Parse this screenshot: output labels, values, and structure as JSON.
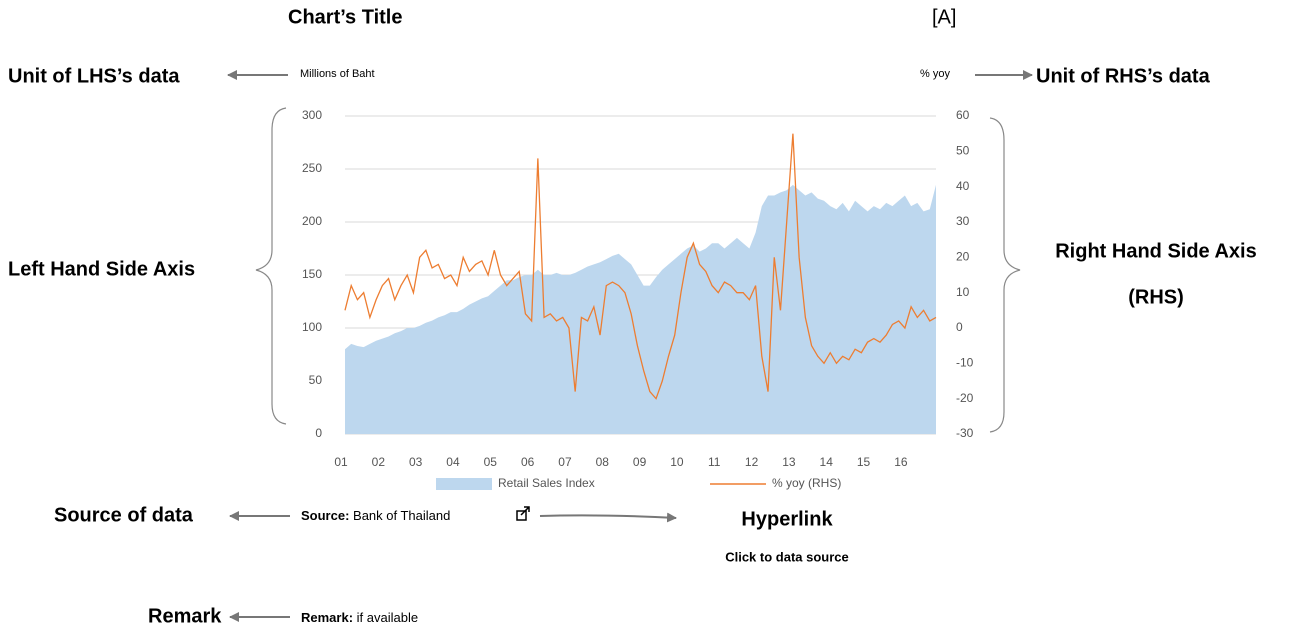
{
  "annotations": {
    "chart_title": "Chart’s Title",
    "marker": "[A]",
    "lhs_unit_label": "Unit of LHS’s data",
    "rhs_unit_label": "Unit of RHS’s data",
    "lhs_axis_label": "Left Hand Side Axis",
    "rhs_axis_label": [
      "Right Hand Side Axis",
      "(RHS)"
    ],
    "source_label": "Source of data",
    "hyperlink_label": "Hyperlink",
    "hyperlink_note": "Click to data source",
    "remark_label": "Remark"
  },
  "chart_data": {
    "type": "area-line",
    "y_unit": "Millions of Baht",
    "y2_unit": "% yoy",
    "categories": [
      "01",
      null,
      null,
      null,
      null,
      null,
      "02",
      null,
      null,
      null,
      null,
      null,
      "03",
      null,
      null,
      null,
      null,
      null,
      "04",
      null,
      null,
      null,
      null,
      null,
      "05",
      null,
      null,
      null,
      null,
      null,
      "06",
      null,
      null,
      null,
      null,
      null,
      "07",
      null,
      null,
      null,
      null,
      null,
      "08",
      null,
      null,
      null,
      null,
      null,
      "09",
      null,
      null,
      null,
      null,
      null,
      "10",
      null,
      null,
      null,
      null,
      null,
      "11",
      null,
      null,
      null,
      null,
      null,
      "12",
      null,
      null,
      null,
      null,
      null,
      "13",
      null,
      null,
      null,
      null,
      null,
      "14",
      null,
      null,
      null,
      null,
      null,
      "15",
      null,
      null,
      null,
      null,
      null,
      "16",
      null,
      null,
      null,
      null,
      null
    ],
    "series": [
      {
        "name": "Retail Sales Index",
        "type": "area",
        "color": "#bdd7ee",
        "values": [
          80,
          85,
          83,
          82,
          85,
          88,
          90,
          92,
          95,
          97,
          100,
          100,
          102,
          105,
          107,
          110,
          112,
          115,
          115,
          118,
          122,
          125,
          128,
          130,
          135,
          140,
          145,
          145,
          148,
          150,
          150,
          155,
          150,
          150,
          152,
          150,
          150,
          152,
          155,
          158,
          160,
          162,
          165,
          168,
          170,
          165,
          160,
          150,
          140,
          140,
          148,
          155,
          160,
          165,
          170,
          175,
          178,
          172,
          175,
          180,
          180,
          175,
          180,
          185,
          180,
          175,
          190,
          215,
          225,
          225,
          228,
          230,
          235,
          230,
          225,
          228,
          222,
          220,
          215,
          212,
          218,
          210,
          220,
          215,
          210,
          215,
          212,
          218,
          215,
          220,
          225,
          215,
          218,
          210,
          212,
          235
        ]
      },
      {
        "name": "% yoy (RHS)",
        "type": "line",
        "axis": "y2",
        "color": "#ed7d31",
        "values": [
          5,
          12,
          8,
          10,
          3,
          8,
          12,
          14,
          8,
          12,
          15,
          10,
          20,
          22,
          17,
          18,
          14,
          15,
          12,
          20,
          16,
          18,
          19,
          15,
          22,
          15,
          12,
          14,
          16,
          4,
          2,
          48,
          3,
          4,
          2,
          3,
          0,
          -18,
          3,
          2,
          6,
          -2,
          12,
          13,
          12,
          10,
          4,
          -5,
          -12,
          -18,
          -20,
          -15,
          -8,
          -2,
          10,
          20,
          24,
          18,
          16,
          12,
          10,
          13,
          12,
          10,
          10,
          8,
          12,
          -8,
          -18,
          20,
          5,
          30,
          55,
          20,
          3,
          -5,
          -8,
          -10,
          -7,
          -10,
          -8,
          -9,
          -6,
          -7,
          -4,
          -3,
          -4,
          -2,
          1,
          2,
          0,
          6,
          3,
          5,
          2,
          3
        ]
      }
    ],
    "ylim": [
      0,
      300
    ],
    "yticks": [
      0,
      50,
      100,
      150,
      200,
      250,
      300
    ],
    "y2lim": [
      -30,
      60
    ],
    "y2ticks": [
      -30,
      -20,
      -10,
      0,
      10,
      20,
      30,
      40,
      50,
      60
    ],
    "grid": true,
    "source": {
      "label": "Source:",
      "text": "Bank of Thailand"
    },
    "remark": {
      "label": "Remark:",
      "text": "if available"
    }
  }
}
